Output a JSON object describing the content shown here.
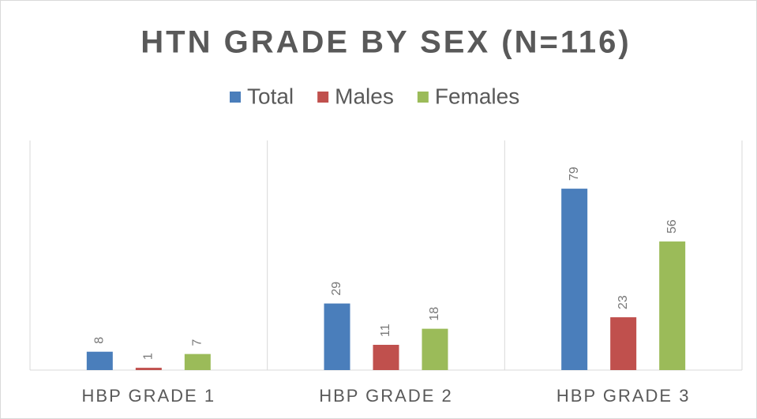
{
  "chart_data": {
    "type": "bar",
    "title": "HTN GRADE BY SEX (N=116)",
    "categories": [
      "HBP GRADE 1",
      "HBP GRADE 2",
      "HBP GRADE 3"
    ],
    "series": [
      {
        "name": "Total",
        "color": "#4a7ebb",
        "values": [
          8,
          29,
          79
        ]
      },
      {
        "name": "Males",
        "color": "#c0504d",
        "values": [
          1,
          11,
          23
        ]
      },
      {
        "name": "Females",
        "color": "#9bbb59",
        "values": [
          7,
          18,
          56
        ]
      }
    ],
    "ylim": [
      0,
      100
    ],
    "legend": "top"
  }
}
